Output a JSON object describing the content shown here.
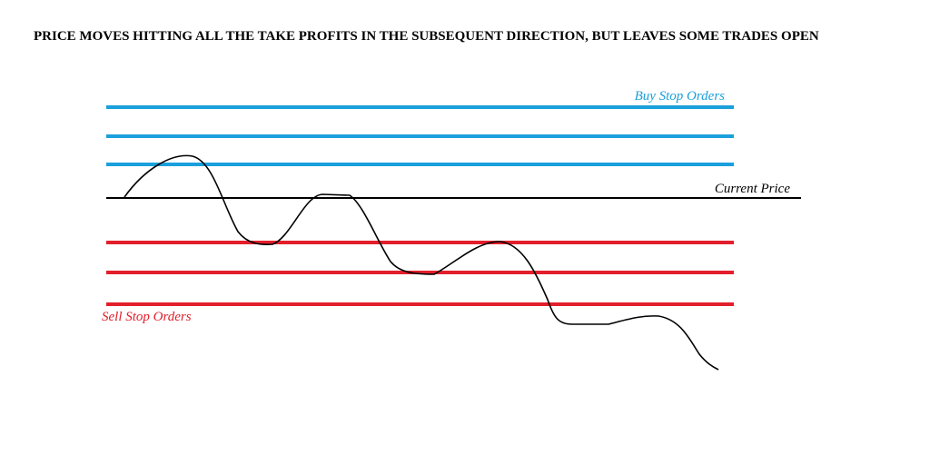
{
  "header": {
    "title": "PRICE MOVES HITTING ALL THE TAKE PROFITS IN THE SUBSEQUENT DIRECTION, BUT LEAVES SOME TRADES OPEN"
  },
  "labels": {
    "buy_stop": "Buy Stop Orders",
    "current_price": "Current Price",
    "sell_stop": "Sell Stop Orders"
  }
}
